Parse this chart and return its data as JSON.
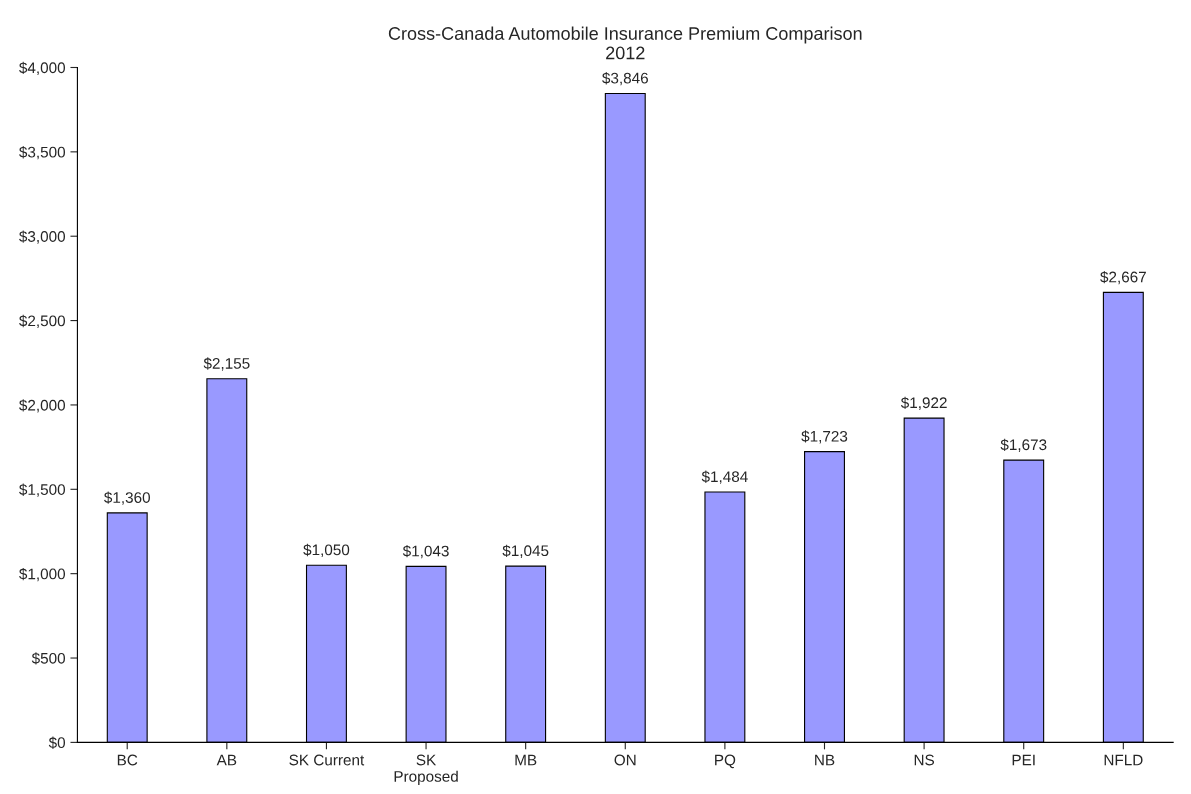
{
  "chart_data": {
    "type": "bar",
    "title": "Cross-Canada Automobile Insurance Premium Comparison\n2012",
    "categories": [
      "BC",
      "AB",
      "SK Current",
      "SK\nProposed",
      "MB",
      "ON",
      "PQ",
      "NB",
      "NS",
      "PEI",
      "NFLD"
    ],
    "values": [
      1360,
      2155,
      1050,
      1043,
      1045,
      3846,
      1484,
      1723,
      1922,
      1673,
      2667
    ],
    "value_labels": [
      "$1,360",
      "$2,155",
      "$1,050",
      "$1,043",
      "$1,045",
      "$3,846",
      "$1,484",
      "$1,723",
      "$1,922",
      "$1,673",
      "$2,667"
    ],
    "color": "#9999ff",
    "ylim": [
      0,
      4000
    ],
    "yticks": [
      {
        "value": 0,
        "label": "$0"
      },
      {
        "value": 500,
        "label": "$500"
      },
      {
        "value": 1000,
        "label": "$1,000"
      },
      {
        "value": 1500,
        "label": "$1,500"
      },
      {
        "value": 2000,
        "label": "$2,000"
      },
      {
        "value": 2500,
        "label": "$2,500"
      },
      {
        "value": 3000,
        "label": "$3,000"
      },
      {
        "value": 3500,
        "label": "$3,500"
      },
      {
        "value": 4000,
        "label": "$4,000"
      }
    ],
    "grid": false,
    "legend": false
  }
}
